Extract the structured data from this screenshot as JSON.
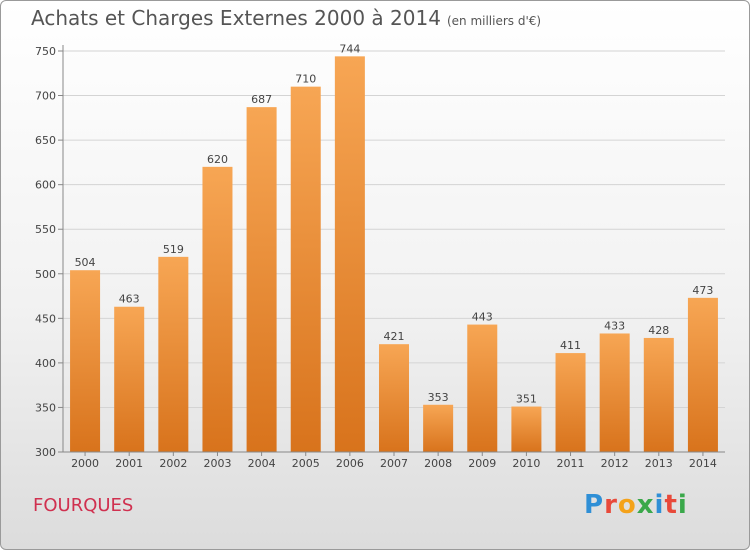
{
  "header": {
    "title": "Achats et Charges Externes 2000 à 2014",
    "subtitle": "(en milliers d'€)"
  },
  "footer": {
    "commune": "FOURQUES",
    "logo": "Proxiti",
    "logo_colors": [
      "#2f8fd6",
      "#e8493a",
      "#f4a21a",
      "#3aa84a",
      "#2f8fd6",
      "#e8493a",
      "#3aa84a"
    ]
  },
  "chart_data": {
    "type": "bar",
    "title": "Achats et Charges Externes 2000 à 2014",
    "subtitle": "(en milliers d'€)",
    "xlabel": "",
    "ylabel": "",
    "categories": [
      "2000",
      "2001",
      "2002",
      "2003",
      "2004",
      "2005",
      "2006",
      "2007",
      "2008",
      "2009",
      "2010",
      "2011",
      "2012",
      "2013",
      "2014"
    ],
    "values": [
      504,
      463,
      519,
      620,
      687,
      710,
      744,
      421,
      353,
      443,
      351,
      411,
      433,
      428,
      473
    ],
    "ylim": [
      300,
      750
    ],
    "yticks": [
      300,
      350,
      400,
      450,
      500,
      550,
      600,
      650,
      700,
      750
    ],
    "grid": true,
    "legend": "none",
    "bar_color_top": "#f7a654",
    "bar_color_bottom": "#d8731c"
  }
}
